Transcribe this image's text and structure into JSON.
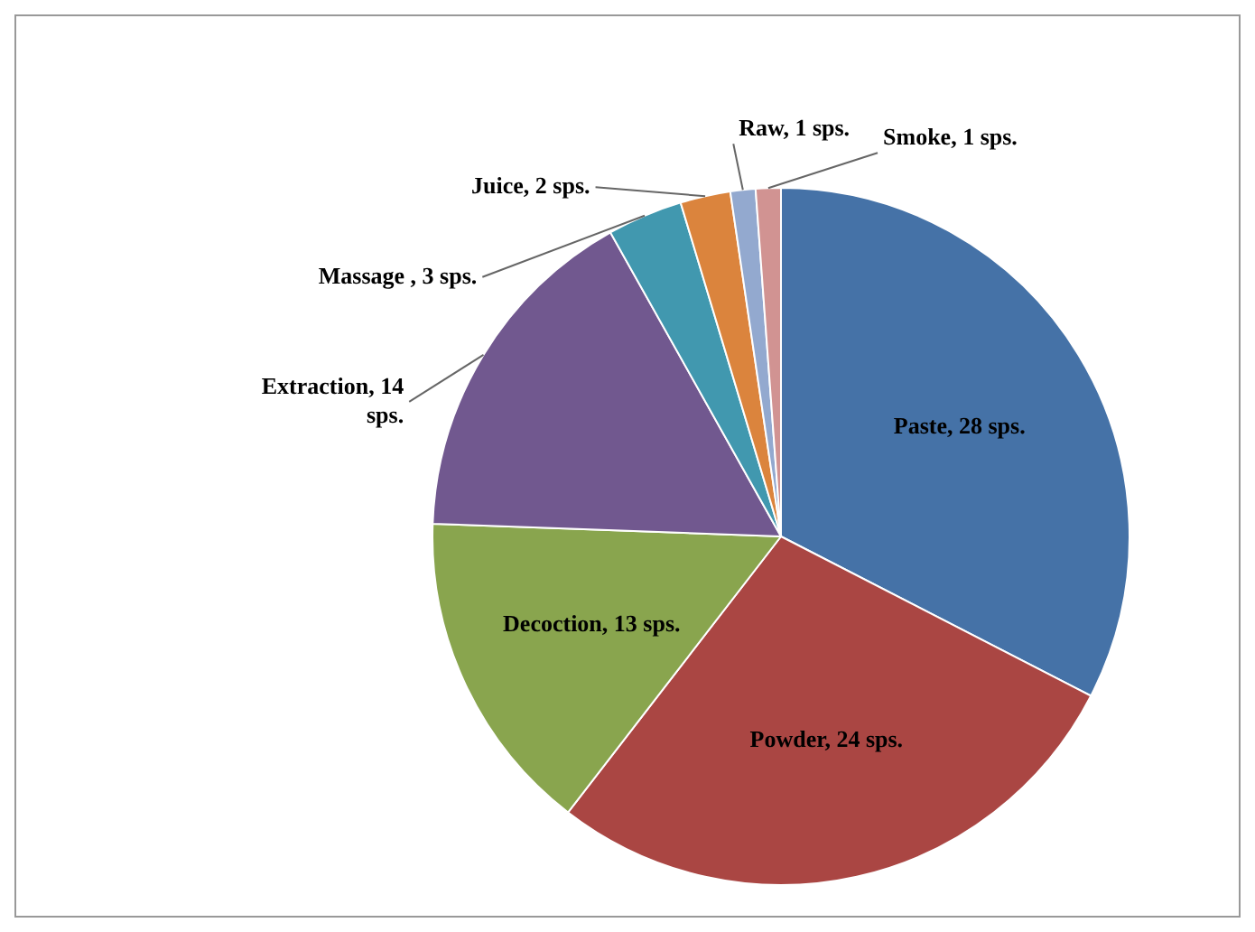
{
  "chart_data": {
    "type": "pie",
    "categories": [
      "Paste",
      "Powder",
      "Decoction",
      "Extraction",
      "Massage ",
      "Juice",
      "Raw",
      "Smoke"
    ],
    "values": [
      28,
      24,
      13,
      14,
      3,
      2,
      1,
      1
    ],
    "colors": [
      "#4572a7",
      "#aa4643",
      "#89a54e",
      "#71588f",
      "#4198af",
      "#db843d",
      "#93a9cf",
      "#d19392"
    ],
    "value_labels": [
      "28 sps.",
      "24 sps.",
      "13 sps.",
      "14 sps.",
      "3 sps.",
      "2 sps.",
      "1 sps.",
      "1 sps."
    ],
    "legend": false
  }
}
